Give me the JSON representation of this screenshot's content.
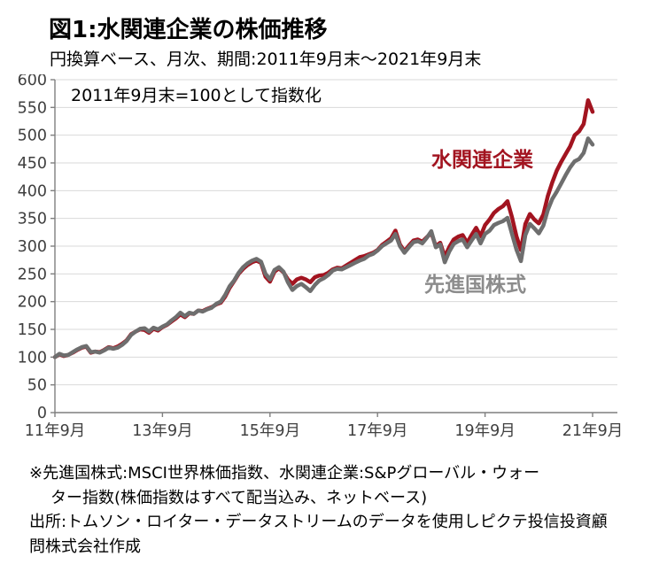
{
  "header": {
    "title": "図1:水関連企業の株価推移",
    "subtitle": "円換算ベース、月次、期間:2011年9月末～2021年9月末"
  },
  "chart_data": {
    "type": "line",
    "title": "図1:水関連企業の株価推移",
    "subtitle": "円換算ベース、月次、期間:2011年9月末～2021年9月末",
    "annotation": "2011年9月末=100として指数化",
    "x_start": "2011-09",
    "x_end": "2021-09",
    "x_interval": "monthly",
    "x_tick_labels": [
      "11年9月",
      "13年9月",
      "15年9月",
      "17年9月",
      "19年9月",
      "21年9月"
    ],
    "y_ticks": [
      0,
      50,
      100,
      150,
      200,
      250,
      300,
      350,
      400,
      450,
      500,
      550,
      600
    ],
    "ylim": [
      0,
      600
    ],
    "grid": "horizontal",
    "grid_color": "#d9d9d9",
    "axis_color": "#7f7f7f",
    "tick_label_color": "#3f3f3f",
    "legend": "inline-labels",
    "series": [
      {
        "name": "水関連企業",
        "color": "#a21420",
        "label_color": "#a21420",
        "values": [
          100,
          105,
          102,
          104,
          108,
          113,
          117,
          119,
          108,
          110,
          109,
          113,
          118,
          116,
          119,
          124,
          130,
          141,
          146,
          150,
          149,
          144,
          151,
          148,
          154,
          158,
          164,
          170,
          177,
          172,
          179,
          178,
          184,
          183,
          187,
          190,
          195,
          198,
          209,
          225,
          237,
          250,
          259,
          266,
          271,
          274,
          270,
          245,
          236,
          254,
          260,
          253,
          240,
          232,
          240,
          243,
          240,
          235,
          244,
          247,
          248,
          252,
          258,
          261,
          260,
          265,
          270,
          275,
          280,
          282,
          285,
          288,
          293,
          302,
          308,
          314,
          328,
          303,
          291,
          301,
          310,
          312,
          308,
          316,
          324,
          300,
          306,
          281,
          298,
          312,
          317,
          320,
          306,
          320,
          333,
          318,
          338,
          348,
          360,
          367,
          372,
          381,
          352,
          318,
          293,
          340,
          358,
          348,
          341,
          357,
          390,
          415,
          436,
          452,
          466,
          480,
          500,
          507,
          520,
          563,
          542
        ]
      },
      {
        "name": "先進国株式",
        "color": "#6e6e6e",
        "label_color": "#8c8c8c",
        "values": [
          100,
          106,
          103,
          104,
          109,
          114,
          118,
          120,
          109,
          110,
          108,
          112,
          117,
          115,
          117,
          122,
          129,
          140,
          146,
          151,
          152,
          146,
          153,
          150,
          155,
          159,
          166,
          172,
          180,
          174,
          180,
          178,
          184,
          182,
          186,
          189,
          196,
          200,
          212,
          228,
          238,
          252,
          262,
          269,
          274,
          277,
          272,
          250,
          240,
          257,
          262,
          254,
          235,
          221,
          228,
          232,
          226,
          219,
          230,
          238,
          242,
          248,
          256,
          259,
          258,
          262,
          266,
          270,
          274,
          277,
          283,
          286,
          292,
          300,
          305,
          310,
          322,
          300,
          288,
          298,
          307,
          309,
          305,
          315,
          327,
          298,
          303,
          271,
          290,
          304,
          309,
          312,
          298,
          310,
          322,
          305,
          322,
          328,
          338,
          342,
          345,
          351,
          322,
          294,
          273,
          320,
          340,
          332,
          323,
          337,
          365,
          385,
          398,
          413,
          428,
          442,
          453,
          457,
          468,
          494,
          483
        ]
      }
    ]
  },
  "notes": {
    "line1": "※先進国株式:MSCI世界株価指数、水関連企業:S&Pグローバル・ウォー",
    "line2": "ター指数(株価指数はすべて配当込み、ネットベース)",
    "line3": "出所:トムソン・ロイター・データストリームのデータを使用しピクテ投信投資顧",
    "line4": "問株式会社作成"
  }
}
